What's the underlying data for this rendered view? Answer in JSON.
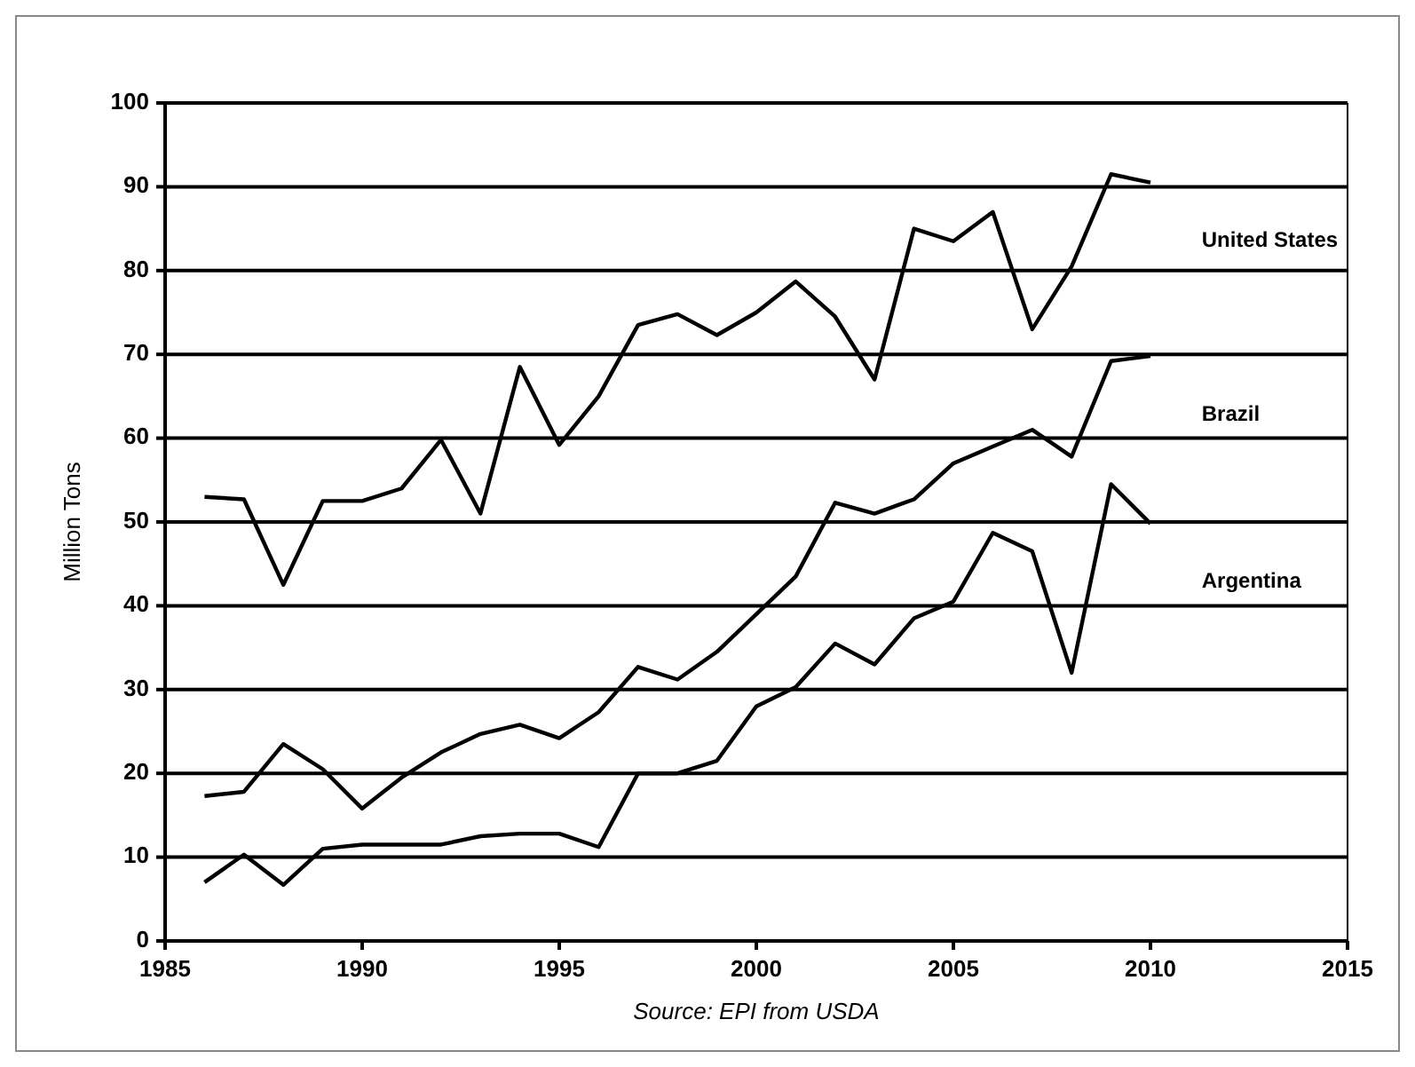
{
  "chart_data": {
    "type": "line",
    "ylabel": "Million Tons",
    "annotations": [
      "Source: EPI from USDA"
    ],
    "x": [
      1986,
      1987,
      1988,
      1989,
      1990,
      1991,
      1992,
      1993,
      1994,
      1995,
      1996,
      1997,
      1998,
      1999,
      2000,
      2001,
      2002,
      2003,
      2004,
      2005,
      2006,
      2007,
      2008,
      2009,
      2010
    ],
    "series": [
      {
        "name": "United States",
        "color": "#000000",
        "values": [
          53,
          52.7,
          42.5,
          52.5,
          52.5,
          54,
          59.8,
          51,
          68.5,
          59.2,
          65,
          73.5,
          74.8,
          72.3,
          75,
          78.7,
          74.5,
          67,
          85,
          83.5,
          87,
          73,
          80.5,
          91.5,
          90.5
        ]
      },
      {
        "name": "Brazil",
        "color": "#000000",
        "values": [
          17.3,
          17.8,
          23.5,
          20.5,
          15.8,
          19.5,
          22.5,
          24.7,
          25.8,
          24.2,
          27.3,
          32.7,
          31.2,
          34.5,
          39,
          43.5,
          52.3,
          51,
          52.7,
          57,
          59,
          61,
          57.8,
          69.2,
          69.8
        ]
      },
      {
        "name": "Argentina",
        "color": "#000000",
        "values": [
          7,
          10.3,
          6.7,
          11,
          11.5,
          11.5,
          11.5,
          12.5,
          12.8,
          12.8,
          11.2,
          20,
          20,
          21.5,
          28,
          30.3,
          35.5,
          33,
          38.5,
          40.5,
          48.7,
          46.5,
          32,
          54.5,
          49.8
        ]
      }
    ],
    "xlim": [
      1985,
      2015
    ],
    "xticks": [
      1985,
      1990,
      1995,
      2000,
      2005,
      2010,
      2015
    ],
    "ylim": [
      0,
      100
    ],
    "yticks": [
      0,
      10,
      20,
      30,
      40,
      50,
      60,
      70,
      80,
      90,
      100
    ],
    "grid": "y",
    "marker": "none",
    "line_style": "solid"
  }
}
